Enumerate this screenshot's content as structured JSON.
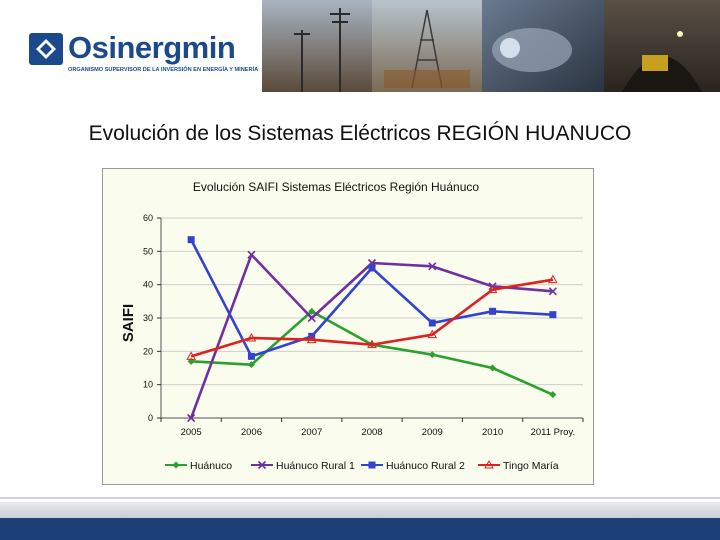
{
  "header": {
    "logo_name": "Osinergmin",
    "logo_tagline": "ORGANISMO SUPERVISOR DE LA INVERSIÓN EN ENERGÍA Y MINERÍA",
    "brand_color": "#1b4a8c"
  },
  "slide_title": "Evolución de los Sistemas Eléctricos  REGIÓN HUANUCO",
  "chart_data": {
    "type": "line",
    "title": "Evolución SAIFI Sistemas Eléctricos Región Huánuco",
    "ylabel": "SAIFI",
    "xlabel": "",
    "categories": [
      "2005",
      "2006",
      "2007",
      "2008",
      "2009",
      "2010",
      "2011 Proy."
    ],
    "ylim": [
      0,
      60
    ],
    "yticks": [
      0,
      10,
      20,
      30,
      40,
      50,
      60
    ],
    "grid": "horizontal",
    "legend_position": "bottom",
    "series": [
      {
        "name": "Huánuco",
        "color": "#2ca02c",
        "marker": "diamond",
        "values": [
          17,
          16,
          32,
          22,
          19,
          15,
          7
        ]
      },
      {
        "name": "Huánuco Rural 1",
        "color": "#7030a0",
        "marker": "x",
        "values": [
          0,
          49,
          30,
          46.5,
          45.5,
          39.5,
          38
        ]
      },
      {
        "name": "Huánuco Rural 2",
        "color": "#3344cc",
        "marker": "square",
        "values": [
          53.5,
          18.5,
          24.5,
          45,
          28.5,
          32,
          31
        ]
      },
      {
        "name": "Tingo María",
        "color": "#dd2222",
        "marker": "triangle",
        "values": [
          18.5,
          24,
          23.5,
          22,
          25,
          38.5,
          41.5
        ]
      }
    ]
  }
}
